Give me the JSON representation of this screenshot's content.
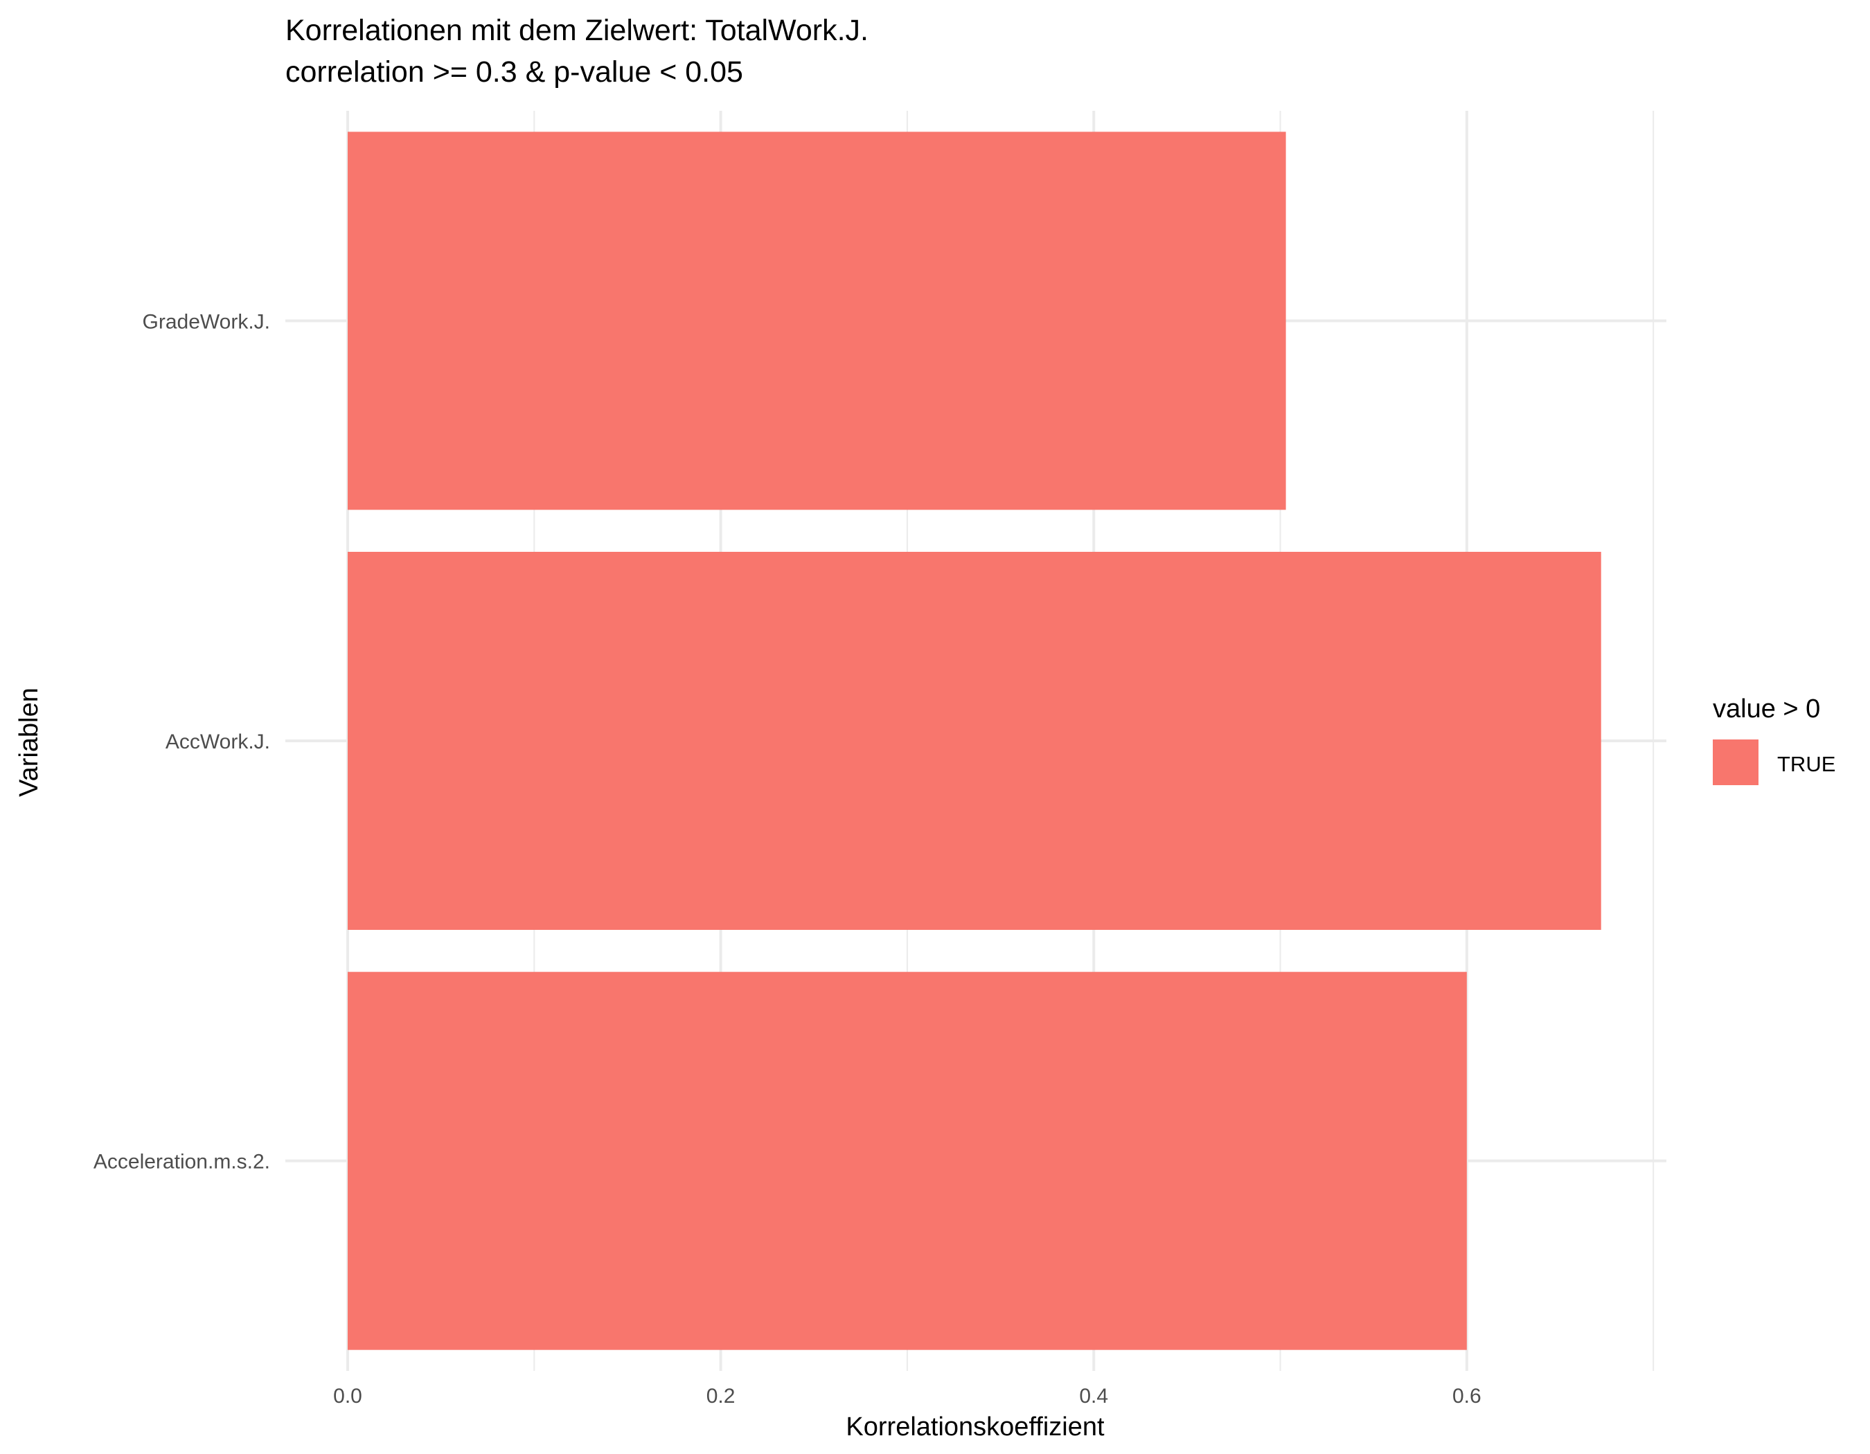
{
  "chart_data": {
    "type": "bar",
    "orientation": "horizontal",
    "title": "Korrelationen mit dem Zielwert: TotalWork.J.",
    "subtitle": "correlation >= 0.3 & p-value < 0.05",
    "xlabel": "Korrelationskoeffizient",
    "ylabel": "Variablen",
    "categories": [
      "GradeWork.J.",
      "AccWork.J.",
      "Acceleration.m.s.2."
    ],
    "values": [
      0.503,
      0.672,
      0.6
    ],
    "xlim": [
      0,
      0.707
    ],
    "x_ticks": [
      "0.0",
      "0.2",
      "0.4",
      "0.6"
    ],
    "x_tick_values": [
      0,
      0.2,
      0.4,
      0.6
    ],
    "bar_color": "#F8766D",
    "grid": true,
    "legend": {
      "title": "value > 0",
      "placement": "right",
      "entries": [
        {
          "label": "TRUE",
          "color": "#F8766D"
        }
      ]
    }
  }
}
